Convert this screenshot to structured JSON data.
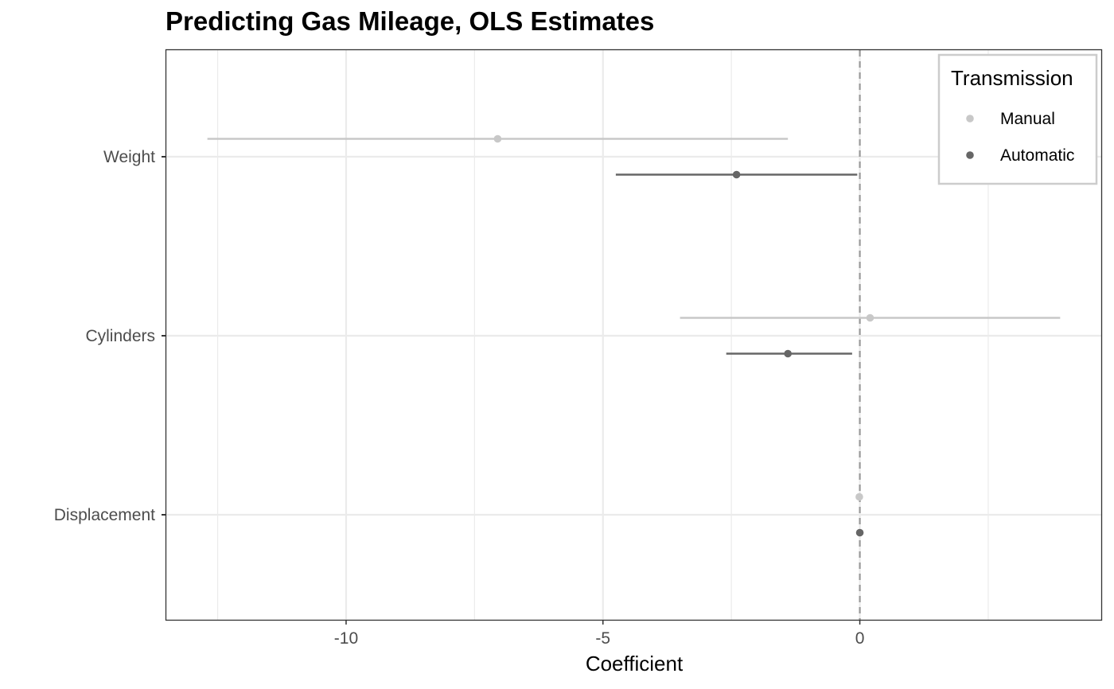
{
  "chart_data": {
    "type": "scatter",
    "title": "Predicting Gas Mileage, OLS Estimates",
    "xlabel": "Coefficient",
    "ylabel": "",
    "xlim": [
      -13.5,
      4.7
    ],
    "x_ticks": [
      -10,
      -5,
      0
    ],
    "x_minor_gridlines": [
      -12.5,
      -7.5,
      -2.5,
      2.5
    ],
    "categories": [
      "Weight",
      "Cylinders",
      "Displacement"
    ],
    "reference_line": {
      "x": 0,
      "style": "dashed",
      "color": "#999999"
    },
    "grid": true,
    "legend": {
      "title": "Transmission",
      "position": "top-right"
    },
    "series": [
      {
        "name": "Manual",
        "color": "#c8c8c8",
        "points": [
          {
            "category": "Weight",
            "estimate": -7.05,
            "lower": -12.7,
            "upper": -1.4
          },
          {
            "category": "Cylinders",
            "estimate": 0.2,
            "lower": -3.5,
            "upper": 3.9
          },
          {
            "category": "Displacement",
            "estimate": -0.01,
            "lower": -0.05,
            "upper": 0.03
          }
        ]
      },
      {
        "name": "Automatic",
        "color": "#666666",
        "points": [
          {
            "category": "Weight",
            "estimate": -2.4,
            "lower": -4.75,
            "upper": -0.05
          },
          {
            "category": "Cylinders",
            "estimate": -1.4,
            "lower": -2.6,
            "upper": -0.15
          },
          {
            "category": "Displacement",
            "estimate": 0.0,
            "lower": -0.02,
            "upper": 0.02
          }
        ]
      }
    ]
  }
}
